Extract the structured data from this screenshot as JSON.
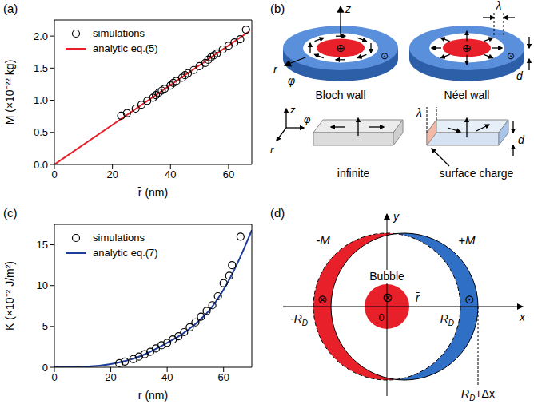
{
  "chart_data": [
    {
      "type": "line",
      "title": "(a)",
      "x_label": "r̄ (nm)",
      "y_label": "M (×10⁻²² kg)",
      "xlim": [
        0,
        68
      ],
      "xticks": [
        0,
        20,
        40,
        60
      ],
      "ylim": [
        0,
        2.25
      ],
      "yticks": [
        {
          "value": 0,
          "label": "0.0"
        },
        {
          "value": 0.5,
          "label": "0.5"
        },
        {
          "value": 1,
          "label": "1.0"
        },
        {
          "value": 1.5,
          "label": "1.5"
        },
        {
          "value": 2,
          "label": "2.0"
        }
      ],
      "legend": "upper left",
      "series": [
        {
          "name": "simulations",
          "type": "scatter",
          "marker": "circle",
          "color": "#000000",
          "x": [
            23,
            25,
            28,
            30,
            32,
            34,
            35,
            36,
            37,
            38,
            40,
            41,
            42,
            44,
            45,
            46,
            48,
            50,
            52,
            53,
            54,
            55,
            56,
            58,
            60,
            62,
            64,
            66
          ],
          "values": [
            0.76,
            0.8,
            0.87,
            0.93,
            0.99,
            1.04,
            1.08,
            1.12,
            1.15,
            1.18,
            1.23,
            1.27,
            1.3,
            1.35,
            1.39,
            1.42,
            1.47,
            1.53,
            1.58,
            1.63,
            1.67,
            1.7,
            1.73,
            1.79,
            1.85,
            1.9,
            1.95,
            2.1
          ]
        },
        {
          "name": "analytic eq.(5)",
          "line_style": "solid",
          "color": "#e8202a",
          "x": [
            0,
            67
          ],
          "values": [
            0,
            2.07
          ]
        }
      ]
    },
    {
      "type": "line",
      "title": "(c)",
      "x_label": "r̄ (nm)",
      "y_label": "K (×10⁻² J/m²)",
      "xlim": [
        0,
        70
      ],
      "xticks": [
        0,
        20,
        40,
        60
      ],
      "ylim": [
        0,
        17.5
      ],
      "yticks": [
        0,
        5,
        10,
        15
      ],
      "legend": "upper left",
      "series": [
        {
          "name": "simulations",
          "type": "scatter",
          "marker": "circle",
          "color": "#000000",
          "x": [
            23,
            25,
            28,
            30,
            32,
            34,
            36,
            38,
            40,
            42,
            44,
            46,
            48,
            50,
            52,
            54,
            56,
            58,
            60,
            62,
            63,
            66
          ],
          "values": [
            0.5,
            0.7,
            1.0,
            1.3,
            1.6,
            1.9,
            2.3,
            2.7,
            3.0,
            3.4,
            3.8,
            4.3,
            4.9,
            5.5,
            6.2,
            6.9,
            7.6,
            8.7,
            10.3,
            11.2,
            12.5,
            16
          ]
        },
        {
          "name": "analytic eq.(7)",
          "line_style": "solid",
          "color": "#1f3c9c",
          "x": [
            0,
            10,
            20,
            30,
            40,
            45,
            50,
            55,
            60,
            65,
            70
          ],
          "values": [
            0,
            0.05,
            0.4,
            1.3,
            3.0,
            4.0,
            5.3,
            7.0,
            9.5,
            12.8,
            16.8
          ]
        }
      ]
    }
  ],
  "diagrams": [
    {
      "panel": "(b)",
      "labels": {
        "disk_axes": [
          "z",
          "r",
          "φ"
        ],
        "lambda": "λ",
        "thickness": "d",
        "walls": [
          "Bloch wall",
          "Néel wall"
        ],
        "box_axes": [
          "z",
          "φ",
          "r"
        ],
        "boxes": [
          "infinite",
          "surface charge"
        ],
        "core": "⊕",
        "outside": "⊙"
      }
    },
    {
      "panel": "(d)",
      "labels": {
        "axes": [
          "x",
          "y"
        ],
        "bubble": "Bubble",
        "origin": "0",
        "radius": "r̄",
        "magnetization": [
          "-M",
          "+M"
        ],
        "left_edge": {
          "main": "-R",
          "sub": "D"
        },
        "right_edge": {
          "main": "R",
          "sub": "D"
        },
        "shifted_edge": {
          "main": "R",
          "sub": "D",
          "after": "+Δx"
        },
        "inside": "⊗",
        "outside": "⊙"
      }
    }
  ]
}
